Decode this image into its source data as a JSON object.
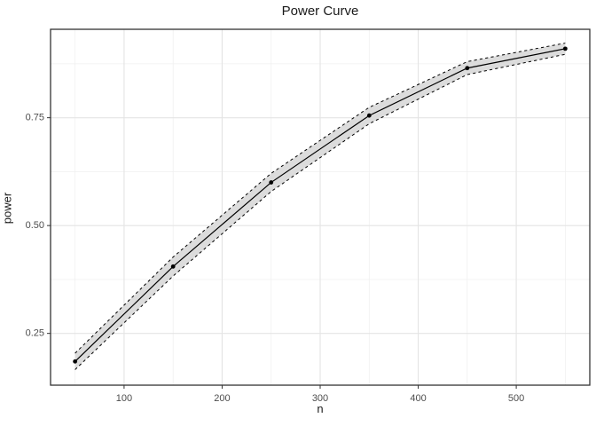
{
  "chart_data": {
    "type": "line",
    "title": "Power Curve",
    "xlabel": "n",
    "ylabel": "power",
    "x": [
      50,
      150,
      250,
      350,
      450,
      550
    ],
    "series": [
      {
        "name": "power",
        "values": [
          0.185,
          0.405,
          0.6,
          0.755,
          0.865,
          0.91
        ]
      }
    ],
    "ribbon": {
      "name": "confidence-band",
      "lower": [
        0.166,
        0.383,
        0.579,
        0.736,
        0.85,
        0.897
      ],
      "upper": [
        0.204,
        0.427,
        0.621,
        0.774,
        0.88,
        0.923
      ]
    },
    "xlim": [
      25,
      575
    ],
    "ylim": [
      0.13,
      0.955
    ],
    "x_ticks": [
      100,
      200,
      300,
      400,
      500
    ],
    "x_tick_labels": [
      "100",
      "200",
      "300",
      "400",
      "500"
    ],
    "x_minor_ticks": [
      50,
      150,
      250,
      350,
      450,
      550
    ],
    "y_ticks": [
      0.25,
      0.5,
      0.75
    ],
    "y_tick_labels": [
      "0.25",
      "0.50",
      "0.75"
    ],
    "y_minor_ticks": [
      0.375,
      0.625,
      0.875
    ],
    "grid": true,
    "legend": "none",
    "style": {
      "background": "#ffffff",
      "panel_background": "#ffffff",
      "panel_border": "#333333",
      "grid_major": "#e4e4e4",
      "grid_minor": "#efefef",
      "ribbon_fill": "#dcdcdc",
      "ribbon_edge": "#000000",
      "line_color": "#000000",
      "point_color": "#000000",
      "tick_mark": "#333333",
      "tick_label_color": "#4d4d4d",
      "title_color": "#1a1a1a"
    }
  }
}
